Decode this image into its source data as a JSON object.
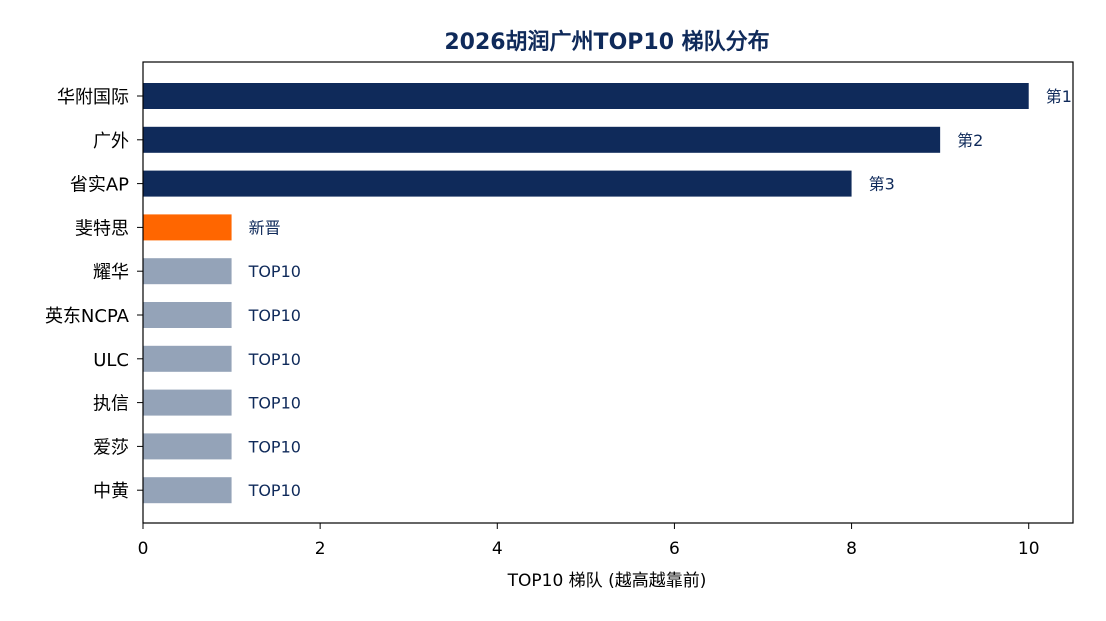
{
  "chart_data": {
    "type": "bar",
    "orientation": "horizontal",
    "title": "2026胡润广州TOP10 梯队分布",
    "xlabel": "TOP10 梯队 (越高越靠前)",
    "ylabel": "",
    "xlim": [
      0,
      10.5
    ],
    "xticks": [
      0,
      2,
      4,
      6,
      8,
      10
    ],
    "grid": false,
    "legend": "none",
    "categories": [
      "华附国际",
      "广外",
      "省实AP",
      "斐特思",
      "耀华",
      "英东NCPA",
      "ULC",
      "执信",
      "爱莎",
      "中黄"
    ],
    "values": [
      10,
      9,
      8,
      1,
      1,
      1,
      1,
      1,
      1,
      1
    ],
    "data_labels": [
      "第1",
      "第2",
      "第3",
      "新晋",
      "TOP10",
      "TOP10",
      "TOP10",
      "TOP10",
      "TOP10",
      "TOP10"
    ],
    "bar_colors": [
      "#0f2a5a",
      "#0f2a5a",
      "#0f2a5a",
      "#ff6600",
      "#94a3b8",
      "#94a3b8",
      "#94a3b8",
      "#94a3b8",
      "#94a3b8",
      "#94a3b8"
    ]
  }
}
